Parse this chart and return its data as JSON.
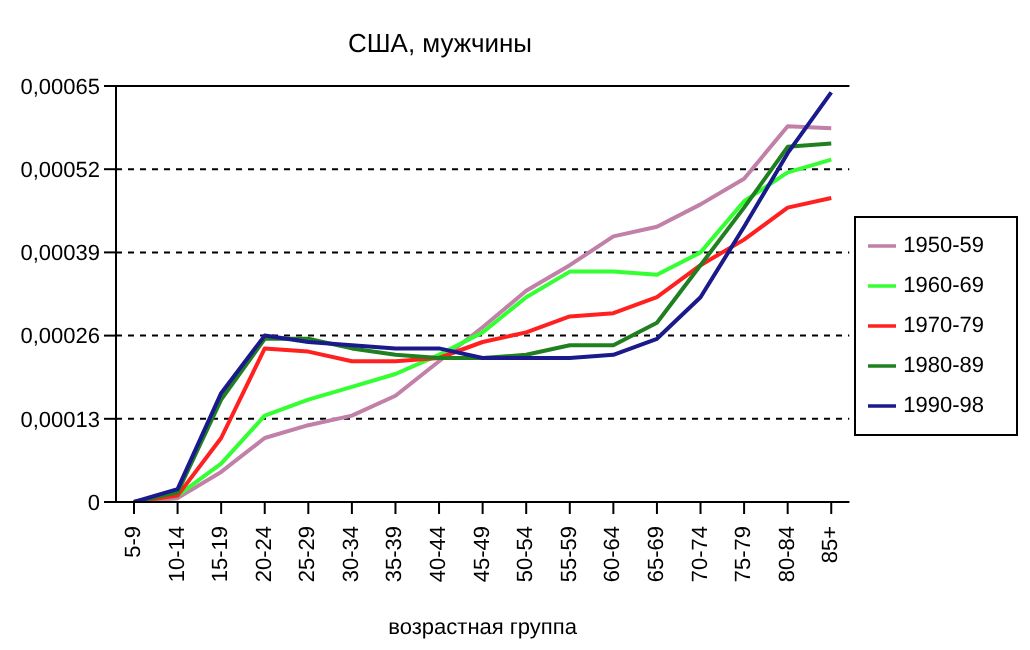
{
  "chart_data": {
    "type": "line",
    "title": "США, мужчины",
    "xlabel": "возрастная группа",
    "categories": [
      "5-9",
      "10-14",
      "15-19",
      "20-24",
      "25-29",
      "30-34",
      "35-39",
      "40-44",
      "45-49",
      "50-54",
      "55-59",
      "60-64",
      "65-69",
      "70-74",
      "75-79",
      "80-84",
      "85+"
    ],
    "series": [
      {
        "name": "1950-59",
        "color": "#c080a8",
        "values": [
          0,
          6e-06,
          4.7e-05,
          0.0001,
          0.00012,
          0.000135,
          0.000166,
          0.00022,
          0.000273,
          0.00033,
          0.00037,
          0.000415,
          0.00043,
          0.000465,
          0.000505,
          0.000587,
          0.000584
        ]
      },
      {
        "name": "1960-69",
        "color": "#33ff33",
        "values": [
          0,
          1e-05,
          6e-05,
          0.000135,
          0.00016,
          0.00018,
          0.0002,
          0.00023,
          0.000265,
          0.00032,
          0.00036,
          0.00036,
          0.000355,
          0.00039,
          0.00047,
          0.000515,
          0.000535
        ]
      },
      {
        "name": "1970-79",
        "color": "#ff2020",
        "values": [
          0,
          1e-05,
          0.0001,
          0.00024,
          0.000235,
          0.00022,
          0.00022,
          0.000225,
          0.00025,
          0.000265,
          0.00029,
          0.000295,
          0.00032,
          0.00037,
          0.00041,
          0.00046,
          0.000475
        ]
      },
      {
        "name": "1980-89",
        "color": "#208020",
        "values": [
          0,
          1.5e-05,
          0.00016,
          0.000255,
          0.000255,
          0.00024,
          0.00023,
          0.000225,
          0.000225,
          0.00023,
          0.000245,
          0.000245,
          0.00028,
          0.00037,
          0.00046,
          0.000555,
          0.00056
        ]
      },
      {
        "name": "1990-98",
        "color": "#1a1a8c",
        "values": [
          0,
          2e-05,
          0.00017,
          0.00026,
          0.00025,
          0.000245,
          0.00024,
          0.00024,
          0.000225,
          0.000225,
          0.000225,
          0.00023,
          0.000255,
          0.00032,
          0.00043,
          0.000545,
          0.00064
        ]
      }
    ],
    "ylim": [
      0,
      0.00065
    ],
    "yticks": [
      {
        "value": 0,
        "label": "0"
      },
      {
        "value": 0.00013,
        "label": "0,00013"
      },
      {
        "value": 0.00026,
        "label": "0,00026"
      },
      {
        "value": 0.00039,
        "label": "0,00039"
      },
      {
        "value": 0.00052,
        "label": "0,00052"
      },
      {
        "value": 0.00065,
        "label": "0,00065"
      }
    ],
    "grid": "y",
    "legend": "right",
    "marker": "none",
    "line_style": "solid"
  }
}
